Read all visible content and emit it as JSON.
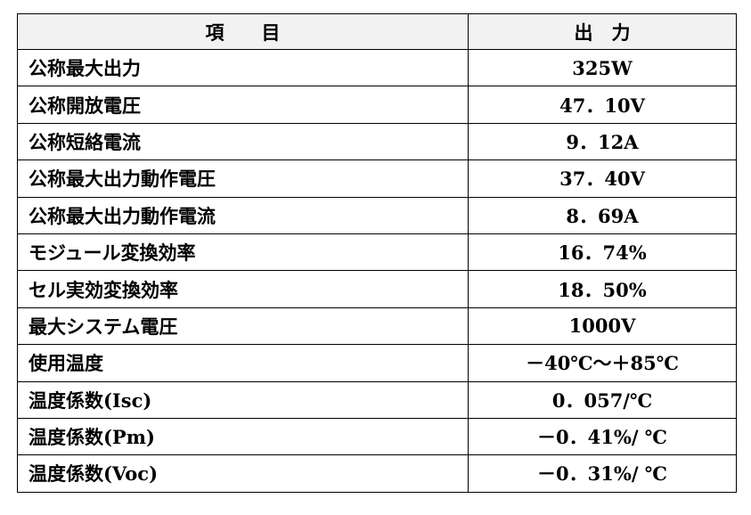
{
  "table": {
    "header": {
      "item": "項　　目",
      "output": "出　力"
    },
    "rows": [
      {
        "label": "公称最大出力",
        "value": "325W"
      },
      {
        "label": "公称開放電圧",
        "value": "47．10V"
      },
      {
        "label": "公称短絡電流",
        "value": "9．12A"
      },
      {
        "label": "公称最大出力動作電圧",
        "value": "37．40V"
      },
      {
        "label": "公称最大出力動作電流",
        "value": "8．69A"
      },
      {
        "label": "モジュール変換効率",
        "value": "16．74%"
      },
      {
        "label": "セル実効変換効率",
        "value": "18．50%"
      },
      {
        "label": "最大システム電圧",
        "value": "1000V"
      },
      {
        "label": "使用温度",
        "value": "－40℃～＋85℃"
      },
      {
        "label": "温度係数(Isc)",
        "value": "0．057/℃"
      },
      {
        "label": "温度係数(Pm)",
        "value": "－0．41%/ ℃"
      },
      {
        "label": "温度係数(Voc)",
        "value": "－0．31%/ ℃"
      }
    ]
  },
  "colors": {
    "header_background": "#f2f2f2",
    "border": "#000000",
    "text": "#000000"
  }
}
